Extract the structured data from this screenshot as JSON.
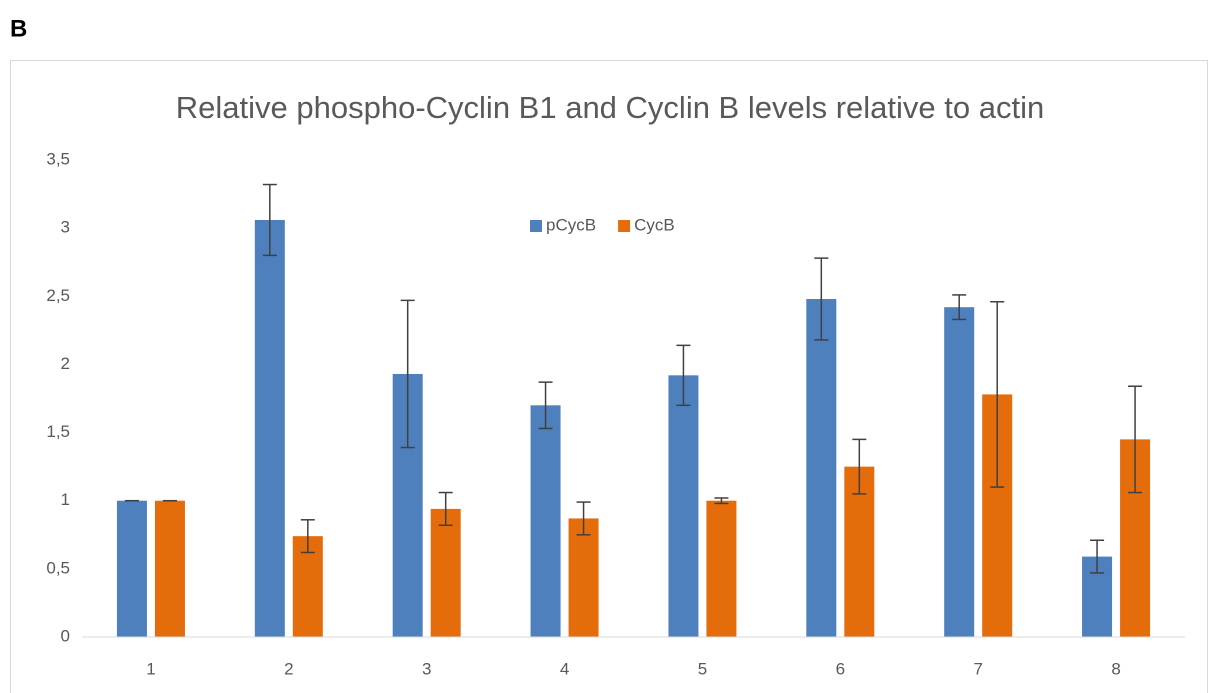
{
  "panel_label": "B",
  "chart_data": {
    "type": "bar",
    "title": "Relative phospho-Cyclin B1 and Cyclin B levels relative to actin",
    "categories": [
      "1",
      "2",
      "3",
      "4",
      "5",
      "6",
      "7",
      "8"
    ],
    "series": [
      {
        "name": "pCycB",
        "color": "#4e80bd",
        "values": [
          1.0,
          3.06,
          1.93,
          1.7,
          1.92,
          2.48,
          2.42,
          0.59
        ],
        "errors": [
          0.0,
          0.26,
          0.54,
          0.17,
          0.22,
          0.3,
          0.09,
          0.12
        ]
      },
      {
        "name": "CycB",
        "color": "#e46c0a",
        "values": [
          1.0,
          0.74,
          0.94,
          0.87,
          1.0,
          1.25,
          1.78,
          1.45
        ],
        "errors": [
          0.0,
          0.12,
          0.12,
          0.12,
          0.02,
          0.2,
          0.68,
          0.39
        ]
      }
    ],
    "ylim": [
      0,
      3.5
    ],
    "yticks": [
      0,
      {
        "value": 0.5,
        "label": "0,5"
      },
      1,
      {
        "value": 1.5,
        "label": "1,5"
      },
      2,
      {
        "value": 2.5,
        "label": "2,5"
      },
      3,
      {
        "value": 3.5,
        "label": "3,5"
      }
    ],
    "grid": false,
    "legend": "top"
  }
}
